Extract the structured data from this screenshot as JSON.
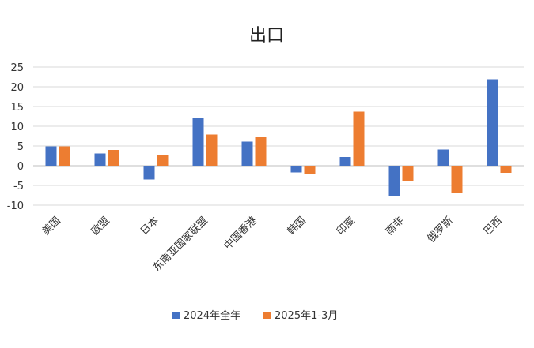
{
  "chart_data": {
    "type": "bar",
    "title": "出口",
    "categories": [
      "美国",
      "欧盟",
      "日本",
      "东南亚国家联盟",
      "中国香港",
      "韩国",
      "印度",
      "南非",
      "俄罗斯",
      "巴西"
    ],
    "series": [
      {
        "name": "2024年全年",
        "color": "#4472C4",
        "values": [
          4.9,
          3.1,
          -3.5,
          12.0,
          6.1,
          -1.7,
          2.2,
          -7.7,
          4.1,
          21.9
        ]
      },
      {
        "name": "2025年1-3月",
        "color": "#ED7D31",
        "values": [
          4.9,
          4.0,
          2.8,
          7.9,
          7.3,
          -2.1,
          13.7,
          -3.8,
          -7.0,
          -1.8
        ]
      }
    ],
    "y_ticks": [
      25,
      20,
      15,
      10,
      5,
      0,
      -5,
      -10
    ],
    "ylim": [
      -10,
      25
    ],
    "grid": true,
    "legend_position": "bottom"
  }
}
